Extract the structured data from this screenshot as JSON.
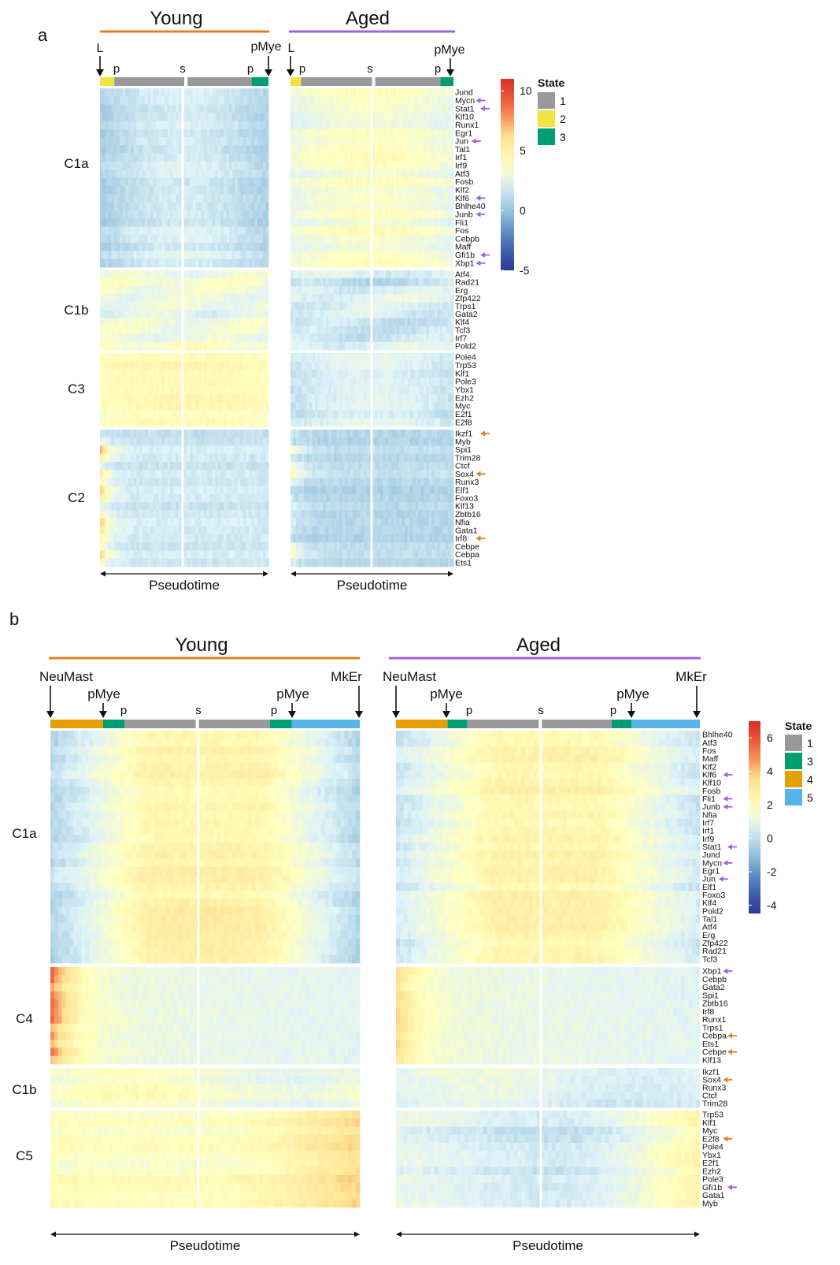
{
  "chart_data": [
    {
      "type": "heatmap",
      "panel_label": "a",
      "conditions": [
        "Young",
        "Aged"
      ],
      "xlabel": "Pseudotime",
      "branch_labels": {
        "left_start": "L",
        "right_end": "pMye",
        "progenitor": "p",
        "split": "s"
      },
      "clusters": [
        {
          "name": "C1a",
          "genes": [
            "Jund",
            "Mycn",
            "Stat1",
            "Klf10",
            "Runx1",
            "Egr1",
            "Jun",
            "Tal1",
            "Irf1",
            "Irf9",
            "Atf3",
            "Fosb",
            "Klf2",
            "Klf6",
            "Bhlhe40",
            "Junb",
            "Fli1",
            "Fos",
            "Cebpb",
            "Maff",
            "Gfi1b",
            "Xbp1"
          ],
          "arrows": {
            "Mycn": "purple",
            "Stat1": "purple",
            "Jun": "purple",
            "Klf6": "purple",
            "Junb": "purple",
            "Gfi1b": "purple",
            "Xbp1": "purple"
          }
        },
        {
          "name": "C1b",
          "genes": [
            "Atf4",
            "Rad21",
            "Erg",
            "Zfp422",
            "Trps1",
            "Gata2",
            "Klf4",
            "Tcf3",
            "Irf7",
            "Pold2"
          ],
          "arrows": {}
        },
        {
          "name": "C3",
          "genes": [
            "Pole4",
            "Trp53",
            "Klf1",
            "Pole3",
            "Ybx1",
            "Ezh2",
            "Myc",
            "E2f1",
            "E2f8"
          ],
          "arrows": {}
        },
        {
          "name": "C2",
          "genes": [
            "Ikzf1",
            "Myb",
            "Spi1",
            "Trim28",
            "Ctcf",
            "Sox4",
            "Runx3",
            "Elf1",
            "Foxo3",
            "Klf13",
            "Zbtb16",
            "Nfia",
            "Gata1",
            "Irf8",
            "Cebpe",
            "Cebpa",
            "Ets1"
          ],
          "arrows": {
            "Ikzf1": "orange",
            "Sox4": "orange",
            "Irf8": "orange"
          }
        }
      ],
      "colorbar": {
        "ticks": [
          10,
          5,
          0,
          -5
        ],
        "range": [
          -5,
          11
        ]
      },
      "state_legend": {
        "title": "State",
        "states": [
          {
            "label": "1",
            "color": "#999999"
          },
          {
            "label": "2",
            "color": "#F0E442"
          },
          {
            "label": "3",
            "color": "#009E73"
          }
        ]
      }
    },
    {
      "type": "heatmap",
      "panel_label": "b",
      "conditions": [
        "Young",
        "Aged"
      ],
      "xlabel": "Pseudotime",
      "branch_labels": {
        "left_start": "NeuMast",
        "right_end": "MkEr",
        "progenitor": "p",
        "split": "s",
        "myeloid": "pMye"
      },
      "clusters": [
        {
          "name": "C1a",
          "genes": [
            "Bhlhe40",
            "Atf3",
            "Fos",
            "Maff",
            "Klf2",
            "Klf6",
            "Klf10",
            "Fosb",
            "Fli1",
            "Junb",
            "Nfia",
            "Irf7",
            "Irf1",
            "Irf9",
            "Stat1",
            "Jund",
            "Mycn",
            "Egr1",
            "Jun",
            "Elf1",
            "Foxo3",
            "Klf4",
            "Pold2",
            "Tal1",
            "Atf4",
            "Erg",
            "Zfp422",
            "Rad21",
            "Tcf3"
          ],
          "arrows": {
            "Klf6": "purple",
            "Fli1": "purple",
            "Junb": "purple",
            "Stat1": "purple",
            "Mycn": "purple",
            "Jun": "purple"
          }
        },
        {
          "name": "C4",
          "genes": [
            "Xbp1",
            "Cebpb",
            "Gata2",
            "Spi1",
            "Zbtb16",
            "Irf8",
            "Runx1",
            "Trps1",
            "Cebpa",
            "Ets1",
            "Cebpe",
            "Klf13"
          ],
          "arrows": {
            "Xbp1": "purple",
            "Cebpa": "orange",
            "Cebpe": "orange"
          }
        },
        {
          "name": "C1b",
          "genes": [
            "Ikzf1",
            "Sox4",
            "Runx3",
            "Ctcf",
            "Trim28"
          ],
          "arrows": {
            "Sox4": "orange"
          }
        },
        {
          "name": "C5",
          "genes": [
            "Trp53",
            "Klf1",
            "Myc",
            "E2f8",
            "Pole4",
            "Ybx1",
            "E2f1",
            "Ezh2",
            "Pole3",
            "Gfi1b",
            "Gata1",
            "Myb"
          ],
          "arrows": {
            "E2f8": "orange",
            "Gfi1b": "purple"
          }
        }
      ],
      "colorbar": {
        "ticks": [
          6,
          4,
          2,
          0,
          -2,
          -4
        ],
        "range": [
          -4.5,
          7
        ]
      },
      "state_legend": {
        "title": "State",
        "states": [
          {
            "label": "1",
            "color": "#999999"
          },
          {
            "label": "3",
            "color": "#009E73"
          },
          {
            "label": "4",
            "color": "#E69F00"
          },
          {
            "label": "5",
            "color": "#56B4E9"
          }
        ]
      }
    }
  ],
  "colors": {
    "young": "#E87D1E",
    "aged": "#A45EE5",
    "arrow_purple": "#A45EE5",
    "arrow_orange": "#E87D1E"
  }
}
